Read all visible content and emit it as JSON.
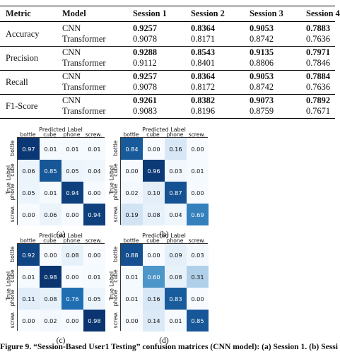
{
  "table": {
    "headers": [
      "Metric",
      "Model",
      "Session 1",
      "Session 2",
      "Session 3",
      "Session 4"
    ],
    "rows": [
      {
        "metric": "Accuracy",
        "models": [
          {
            "name": "CNN",
            "values": [
              "0.9257",
              "0.8364",
              "0.9053",
              "0.7883"
            ],
            "bold": true
          },
          {
            "name": "Transformer",
            "values": [
              "0.9078",
              "0.8171",
              "0.8742",
              "0.7636"
            ],
            "bold": false
          }
        ]
      },
      {
        "metric": "Precision",
        "models": [
          {
            "name": "CNN",
            "values": [
              "0.9288",
              "0.8543",
              "0.9135",
              "0.7971"
            ],
            "bold": true
          },
          {
            "name": "Transformer",
            "values": [
              "0.9112",
              "0.8401",
              "0.8806",
              "0.7846"
            ],
            "bold": false
          }
        ]
      },
      {
        "metric": "Recall",
        "models": [
          {
            "name": "CNN",
            "values": [
              "0.9257",
              "0.8364",
              "0.9053",
              "0.7884"
            ],
            "bold": true
          },
          {
            "name": "Transformer",
            "values": [
              "0.9078",
              "0.8172",
              "0.8742",
              "0.7636"
            ],
            "bold": false
          }
        ]
      },
      {
        "metric": "F1-Score",
        "models": [
          {
            "name": "CNN",
            "values": [
              "0.9261",
              "0.8382",
              "0.9073",
              "0.7892"
            ],
            "bold": true
          },
          {
            "name": "Transformer",
            "values": [
              "0.9083",
              "0.8196",
              "0.8759",
              "0.7671"
            ],
            "bold": false
          }
        ]
      }
    ]
  },
  "chart_data": [
    {
      "type": "heatmap",
      "panel": "(a)",
      "xlabel": "Predicted Label",
      "ylabel": "True Label",
      "labels": [
        "bottle",
        "cube",
        "phone",
        "screw."
      ],
      "values": [
        [
          "0.97",
          "0.01",
          "0.01",
          "0.01"
        ],
        [
          "0.06",
          "0.85",
          "0.05",
          "0.04"
        ],
        [
          "0.05",
          "0.01",
          "0.94",
          "0.00"
        ],
        [
          "0.00",
          "0.06",
          "0.00",
          "0.94"
        ]
      ]
    },
    {
      "type": "heatmap",
      "panel": "(b)",
      "xlabel": "Predicted Label",
      "ylabel": "True Label",
      "labels": [
        "bottle",
        "cube",
        "phone",
        "screw."
      ],
      "values": [
        [
          "0.84",
          "0.00",
          "0.16",
          "0.00"
        ],
        [
          "0.00",
          "0.96",
          "0.03",
          "0.01"
        ],
        [
          "0.02",
          "0.10",
          "0.87",
          "0.00"
        ],
        [
          "0.19",
          "0.08",
          "0.04",
          "0.69"
        ]
      ]
    },
    {
      "type": "heatmap",
      "panel": "(c)",
      "xlabel": "Predicted Label",
      "ylabel": "True Label",
      "labels": [
        "bottle",
        "cube",
        "phone",
        "screw."
      ],
      "values": [
        [
          "0.92",
          "0.00",
          "0.08",
          "0.00"
        ],
        [
          "0.01",
          "0.98",
          "0.00",
          "0.01"
        ],
        [
          "0.11",
          "0.08",
          "0.76",
          "0.05"
        ],
        [
          "0.00",
          "0.02",
          "0.00",
          "0.98"
        ]
      ]
    },
    {
      "type": "heatmap",
      "panel": "(d)",
      "xlabel": "Predicted Label",
      "ylabel": "True Label",
      "labels": [
        "bottle",
        "cube",
        "phone",
        "screw."
      ],
      "values": [
        [
          "0.88",
          "0.00",
          "0.09",
          "0.03"
        ],
        [
          "0.01",
          "0.60",
          "0.08",
          "0.31"
        ],
        [
          "0.01",
          "0.16",
          "0.83",
          "0.00"
        ],
        [
          "0.00",
          "0.14",
          "0.01",
          "0.85"
        ]
      ]
    }
  ],
  "caption": "Figure 9. “Session-Based User1 Testing” confusion matrices (CNN model): (a) Session 1. (b) Sessi"
}
